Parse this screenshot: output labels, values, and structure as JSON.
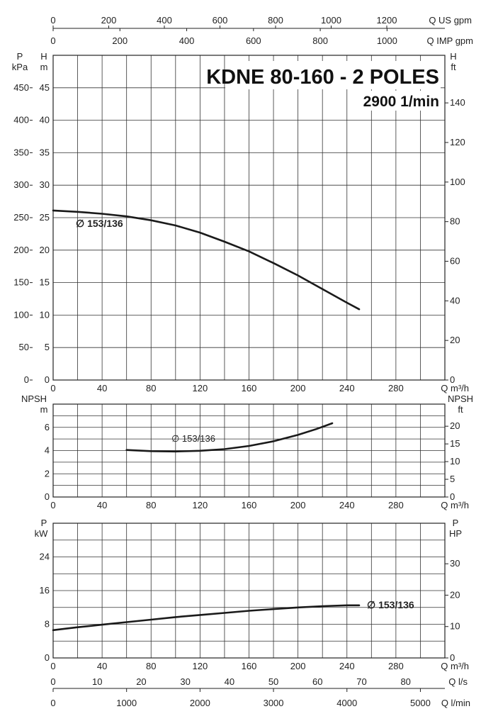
{
  "chart_data": [
    {
      "type": "line",
      "title": "KDNE 80-160 - 2 POLES",
      "subtitle": "2900 1/min",
      "xlabel": "Q m³/h",
      "xlim": [
        0,
        320
      ],
      "x_ticks": [
        "0",
        "40",
        "80",
        "120",
        "160",
        "200",
        "240",
        "280"
      ],
      "left_axes": [
        {
          "name": "P",
          "unit": "kPa",
          "ticks": [
            "0",
            "50",
            "100",
            "150",
            "200",
            "250",
            "300",
            "350",
            "400",
            "450"
          ]
        },
        {
          "name": "H",
          "unit": "m",
          "ticks": [
            "0",
            "5",
            "10",
            "15",
            "20",
            "25",
            "30",
            "35",
            "40",
            "45"
          ]
        }
      ],
      "right_axis": {
        "name": "H",
        "unit": "ft",
        "ticks": [
          "0",
          "20",
          "40",
          "60",
          "80",
          "100",
          "120",
          "140"
        ]
      },
      "ylim": [
        0,
        50
      ],
      "top_axes": [
        {
          "label": "Q US gpm",
          "ticks": [
            "0",
            "200",
            "400",
            "600",
            "800",
            "1000",
            "1200"
          ]
        },
        {
          "label": "Q IMP gpm",
          "ticks": [
            "0",
            "200",
            "400",
            "600",
            "800",
            "1000"
          ]
        }
      ],
      "series": [
        {
          "name": "∅ 153/136",
          "x": [
            0,
            20,
            40,
            60,
            80,
            100,
            120,
            140,
            160,
            180,
            200,
            220,
            240,
            250
          ],
          "y": [
            26.1,
            25.9,
            25.6,
            25.2,
            24.6,
            23.8,
            22.7,
            21.3,
            19.8,
            18.0,
            16.1,
            14.0,
            11.9,
            10.9
          ]
        }
      ]
    },
    {
      "type": "line",
      "xlabel": "Q m³/h",
      "xlim": [
        0,
        320
      ],
      "x_ticks": [
        "0",
        "40",
        "80",
        "120",
        "160",
        "200",
        "240",
        "280"
      ],
      "left_axis": {
        "name": "NPSH",
        "unit": "m",
        "ticks": [
          "0",
          "2",
          "4",
          "6"
        ]
      },
      "right_axis": {
        "name": "NPSH",
        "unit": "ft",
        "ticks": [
          "0",
          "5",
          "10",
          "15",
          "20"
        ]
      },
      "ylim": [
        0,
        8
      ],
      "series": [
        {
          "name": "∅ 153/136",
          "x": [
            60,
            80,
            100,
            120,
            140,
            160,
            180,
            200,
            215,
            228
          ],
          "y": [
            4.05,
            3.95,
            3.92,
            3.98,
            4.12,
            4.4,
            4.8,
            5.35,
            5.85,
            6.35
          ]
        }
      ]
    },
    {
      "type": "line",
      "xlabel": "Q m³/h",
      "xlim": [
        0,
        320
      ],
      "x_ticks": [
        "0",
        "40",
        "80",
        "120",
        "160",
        "200",
        "240",
        "280"
      ],
      "left_axis": {
        "name": "P",
        "unit": "kW",
        "ticks": [
          "0",
          "8",
          "16",
          "24"
        ]
      },
      "right_axis": {
        "name": "P",
        "unit": "HP",
        "ticks": [
          "0",
          "10",
          "20",
          "30"
        ]
      },
      "ylim": [
        0,
        32
      ],
      "bottom_axes": [
        {
          "label": "Q l/s",
          "ticks": [
            "0",
            "10",
            "20",
            "30",
            "40",
            "50",
            "60",
            "70",
            "80",
            "90"
          ]
        },
        {
          "label": "Q l/min",
          "ticks": [
            "0",
            "1000",
            "2000",
            "3000",
            "4000",
            "5000"
          ]
        }
      ],
      "series": [
        {
          "name": "∅ 153/136",
          "x": [
            0,
            20,
            40,
            60,
            80,
            100,
            120,
            140,
            160,
            180,
            200,
            220,
            240,
            250
          ],
          "y": [
            6.6,
            7.3,
            7.9,
            8.5,
            9.1,
            9.7,
            10.2,
            10.7,
            11.2,
            11.6,
            12.0,
            12.3,
            12.5,
            12.5
          ]
        }
      ]
    }
  ]
}
